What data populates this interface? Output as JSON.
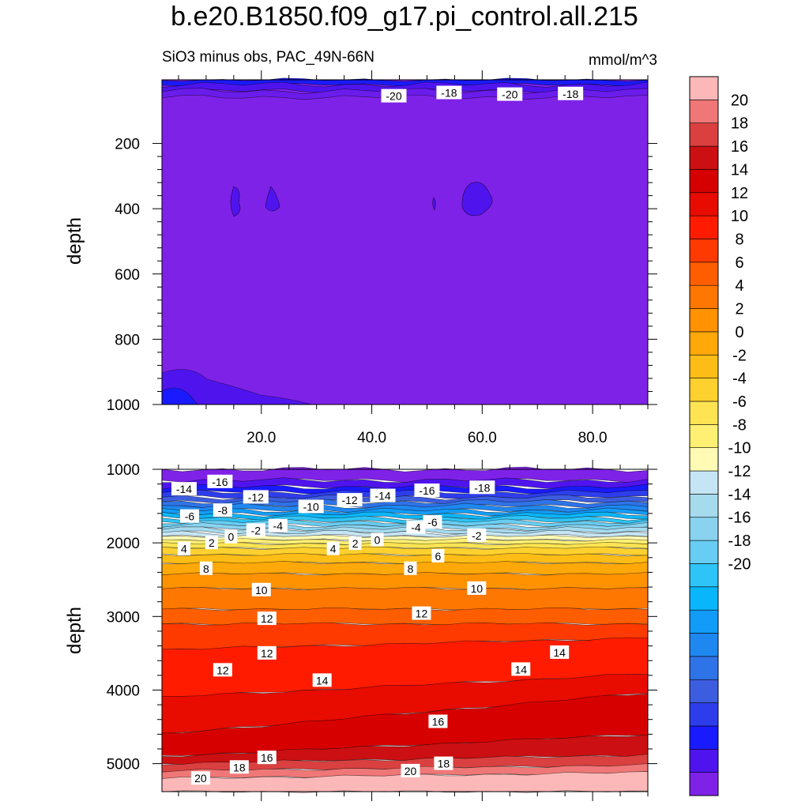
{
  "title": "b.e20.B1850.f09_g17.pi_control.all.215",
  "top_panel": {
    "subtitle": "SiO3 minus obs, PAC_49N-66N",
    "units": "mmol/m^3"
  },
  "colors": {
    "levels": [
      "#7f22e8",
      "#4f14ee",
      "#1a1aff",
      "#2e3dec",
      "#3d5de0",
      "#2f73e8",
      "#1f87f0",
      "#129cf7",
      "#0ab6fb",
      "#2ec4f7",
      "#67cdf3",
      "#89d3f0",
      "#a6dbee",
      "#c6e5f4",
      "#fffbb4",
      "#fff073",
      "#fee452",
      "#fed12f",
      "#febd16",
      "#fea80a",
      "#fe9200",
      "#fe7700",
      "#fe5e00",
      "#fe3a00",
      "#fe1b00",
      "#e80b00",
      "#d70000",
      "#cb0f12",
      "#da4040",
      "#f07777",
      "#fcb8b8"
    ],
    "top_fill": "#7f22e8"
  },
  "chart_data": [
    {
      "type": "contour",
      "panel": "top",
      "xlabel": "",
      "ylabel": "depth",
      "xlim": [
        2,
        90
      ],
      "ylim": [
        1000,
        5
      ],
      "xticks": [
        20,
        40,
        60,
        80
      ],
      "xtick_labels": [
        "20.0",
        "40.0",
        "60.0",
        "80.0"
      ],
      "yticks": [
        200,
        400,
        600,
        800,
        1000
      ],
      "ytick_labels": [
        "200",
        "400",
        "600",
        "800",
        "1000"
      ],
      "contour_labels": [
        {
          "text": "-20",
          "x": 44,
          "y": 55
        },
        {
          "text": "-18",
          "x": 54,
          "y": 45
        },
        {
          "text": "-20",
          "x": 65,
          "y": 50
        },
        {
          "text": "-18",
          "x": 76,
          "y": 48
        }
      ]
    },
    {
      "type": "contour",
      "panel": "bottom",
      "xlabel": "",
      "ylabel": "depth",
      "xlim": [
        2,
        90
      ],
      "ylim": [
        1000,
        5380
      ],
      "yticks": [
        1000,
        2000,
        3000,
        4000,
        5000
      ],
      "ytick_labels": [
        "1000",
        "2000",
        "3000",
        "4000",
        "5000"
      ],
      "contour_labels": [
        {
          "text": "-14",
          "x": 6,
          "y": 1270
        },
        {
          "text": "-16",
          "x": 12.5,
          "y": 1170
        },
        {
          "text": "-12",
          "x": 19,
          "y": 1380
        },
        {
          "text": "-10",
          "x": 29,
          "y": 1510
        },
        {
          "text": "-12",
          "x": 36,
          "y": 1420
        },
        {
          "text": "-14",
          "x": 42,
          "y": 1360
        },
        {
          "text": "-16",
          "x": 50,
          "y": 1290
        },
        {
          "text": "-18",
          "x": 60,
          "y": 1250
        },
        {
          "text": "-8",
          "x": 13,
          "y": 1560
        },
        {
          "text": "-6",
          "x": 7,
          "y": 1640
        },
        {
          "text": "-2",
          "x": 19,
          "y": 1830
        },
        {
          "text": "-4",
          "x": 23,
          "y": 1770
        },
        {
          "text": "-4",
          "x": 48,
          "y": 1790
        },
        {
          "text": "-6",
          "x": 51,
          "y": 1720
        },
        {
          "text": "-2",
          "x": 59,
          "y": 1900
        },
        {
          "text": "0",
          "x": 14.5,
          "y": 1920
        },
        {
          "text": "2",
          "x": 11,
          "y": 2000
        },
        {
          "text": "4",
          "x": 6,
          "y": 2080
        },
        {
          "text": "0",
          "x": 41,
          "y": 1960
        },
        {
          "text": "2",
          "x": 37,
          "y": 2010
        },
        {
          "text": "4",
          "x": 33,
          "y": 2080
        },
        {
          "text": "8",
          "x": 10,
          "y": 2350
        },
        {
          "text": "8",
          "x": 47,
          "y": 2350
        },
        {
          "text": "6",
          "x": 52,
          "y": 2180
        },
        {
          "text": "10",
          "x": 20,
          "y": 2640
        },
        {
          "text": "10",
          "x": 59,
          "y": 2620
        },
        {
          "text": "12",
          "x": 21,
          "y": 3030
        },
        {
          "text": "12",
          "x": 49,
          "y": 2960
        },
        {
          "text": "12",
          "x": 21,
          "y": 3500
        },
        {
          "text": "12",
          "x": 13,
          "y": 3730
        },
        {
          "text": "14",
          "x": 31,
          "y": 3870
        },
        {
          "text": "14",
          "x": 67,
          "y": 3720
        },
        {
          "text": "14",
          "x": 74,
          "y": 3490
        },
        {
          "text": "16",
          "x": 52,
          "y": 4430
        },
        {
          "text": "16",
          "x": 21,
          "y": 4920
        },
        {
          "text": "18",
          "x": 16,
          "y": 5050
        },
        {
          "text": "18",
          "x": 53,
          "y": 5000
        },
        {
          "text": "20",
          "x": 9,
          "y": 5200
        },
        {
          "text": "20",
          "x": 47,
          "y": 5100
        }
      ]
    },
    {
      "type": "colorbar",
      "levels": [
        "20",
        "18",
        "16",
        "14",
        "12",
        "10",
        "8",
        "6",
        "4",
        "2",
        "0",
        "-2",
        "-4",
        "-6",
        "-8",
        "-10",
        "-12",
        "-14",
        "-16",
        "-18",
        "-20"
      ]
    }
  ]
}
